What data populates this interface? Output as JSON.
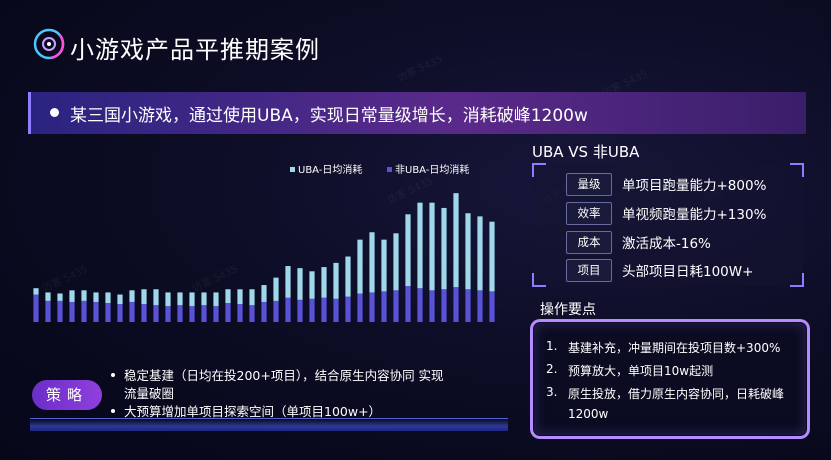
{
  "title": "小游戏产品平推期案例",
  "banner": "某三国小游戏，通过使用UBA，实现日常量级增长，消耗破峰1200w",
  "chart_data": {
    "type": "bar",
    "stacked": true,
    "legend": [
      "UBA-日均消耗",
      "非UBA-日均消耗"
    ],
    "legend_position": "top",
    "colors": {
      "UBA-日均消耗": "#9fd8ea",
      "非UBA-日均消耗": "#5a52d6"
    },
    "series": [
      {
        "name": "非UBA-日均消耗",
        "values": [
          26,
          20,
          20,
          19,
          20,
          19,
          18,
          17,
          19,
          17,
          16,
          15,
          16,
          15,
          16,
          15,
          18,
          17,
          16,
          19,
          20,
          23,
          21,
          22,
          23,
          22,
          24,
          27,
          28,
          29,
          30,
          34,
          32,
          30,
          31,
          33,
          31,
          30,
          29
        ]
      },
      {
        "name": "UBA-日均消耗",
        "values": [
          6,
          8,
          7,
          11,
          10,
          9,
          10,
          9,
          11,
          14,
          15,
          13,
          12,
          13,
          12,
          13,
          13,
          14,
          15,
          16,
          22,
          30,
          30,
          26,
          29,
          34,
          38,
          51,
          57,
          49,
          54,
          68,
          81,
          83,
          77,
          89,
          72,
          70,
          66
        ]
      }
    ],
    "grid": false
  },
  "comparison": {
    "title": "UBA VS 非UBA",
    "rows": [
      {
        "tag": "量级",
        "value": "单项目跑量能力+800%"
      },
      {
        "tag": "效率",
        "value": "单视频跑量能力+130%"
      },
      {
        "tag": "成本",
        "value": "激活成本-16%"
      },
      {
        "tag": "项目",
        "value": "头部项目日耗100W+"
      }
    ]
  },
  "operations": {
    "title": "操作要点",
    "items": [
      {
        "num": "1.",
        "text": "基建补充，冲量期间在投项目数+300%"
      },
      {
        "num": "2.",
        "text": "预算放大，单项目10w起测"
      },
      {
        "num": "3.",
        "text": "原生投放，借力原生内容协同，日耗破峰",
        "cont": "1200w"
      }
    ]
  },
  "strategy": {
    "tag": "策略",
    "items": [
      {
        "text": "稳定基建（日均在投200+项目），结合原生内容协同 实现",
        "cont": "流量破圈"
      },
      {
        "text": "大预算增加单项目探索空间（单项目100w+）"
      }
    ]
  }
}
